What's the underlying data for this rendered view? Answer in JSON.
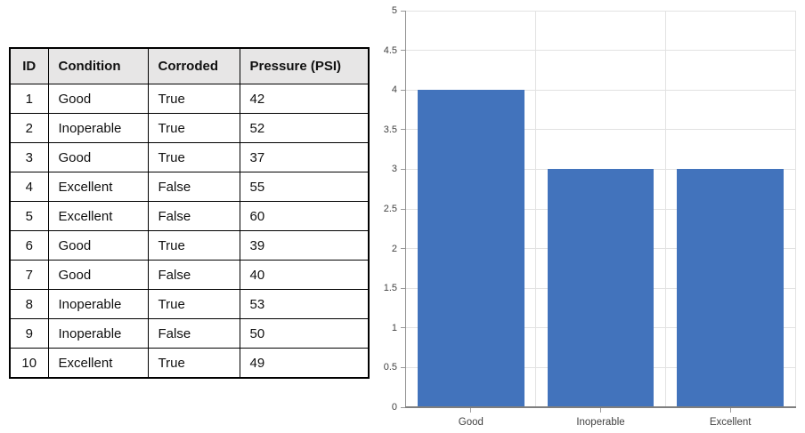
{
  "table": {
    "headers": [
      "ID",
      "Condition",
      "Corroded",
      "Pressure (PSI)"
    ],
    "rows": [
      [
        "1",
        "Good",
        "True",
        "42"
      ],
      [
        "2",
        "Inoperable",
        "True",
        "52"
      ],
      [
        "3",
        "Good",
        "True",
        "37"
      ],
      [
        "4",
        "Excellent",
        "False",
        "55"
      ],
      [
        "5",
        "Excellent",
        "False",
        "60"
      ],
      [
        "6",
        "Good",
        "True",
        "39"
      ],
      [
        "7",
        "Good",
        "False",
        "40"
      ],
      [
        "8",
        "Inoperable",
        "True",
        "53"
      ],
      [
        "9",
        "Inoperable",
        "False",
        "50"
      ],
      [
        "10",
        "Excellent",
        "True",
        "49"
      ]
    ],
    "header_bg": "#e7e6e6",
    "border_color": "#000000",
    "text_color": "#111111"
  },
  "chart_data": {
    "type": "bar",
    "categories": [
      "Good",
      "Inoperable",
      "Excellent"
    ],
    "values": [
      4,
      3,
      3
    ],
    "title": "",
    "xlabel": "",
    "ylabel": "",
    "ylim": [
      0,
      5
    ],
    "ytick_step": 0.5,
    "grid": true,
    "legend": false,
    "bar_color": "#4273bc",
    "gridline_color": "#e2e2e2",
    "y_axis_color": "#8f8f8f",
    "x_axis_color": "#7f7f7f",
    "tick_color": "#999999",
    "tick_label_color": "#424242"
  }
}
